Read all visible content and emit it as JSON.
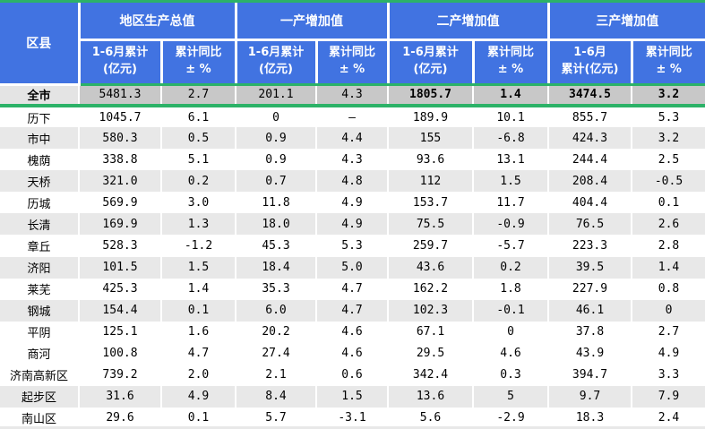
{
  "chart_data": {
    "type": "table",
    "corner_header": "区县",
    "groups": [
      {
        "label": "地区生产总值",
        "col_value": {
          "l1": "1-6月累计",
          "l2": "(亿元)"
        },
        "col_yoy": {
          "l1": "累计同比",
          "l2": "± %"
        }
      },
      {
        "label": "一产增加值",
        "col_value": {
          "l1": "1-6月累计",
          "l2": "(亿元)"
        },
        "col_yoy": {
          "l1": "累计同比",
          "l2": "± %"
        }
      },
      {
        "label": "二产增加值",
        "col_value": {
          "l1": "1-6月累计",
          "l2": "(亿元)"
        },
        "col_yoy": {
          "l1": "累计同比",
          "l2": "± %"
        }
      },
      {
        "label": "三产增加值",
        "col_value": {
          "l1": "1-6月",
          "l2": "累计(亿元)"
        },
        "col_yoy": {
          "l1": "累计同比",
          "l2": "± %"
        }
      }
    ],
    "total_row": {
      "region": "全市",
      "values": [
        "5481.3",
        "2.7",
        "201.1",
        "4.3",
        "1805.7",
        "1.4",
        "3474.5",
        "3.2"
      ]
    },
    "rows": [
      {
        "region": "历下",
        "values": [
          "1045.7",
          "6.1",
          "0",
          "–",
          "189.9",
          "10.1",
          "855.7",
          "5.3"
        ],
        "shaded": false
      },
      {
        "region": "市中",
        "values": [
          "580.3",
          "0.5",
          "0.9",
          "4.4",
          "155",
          "-6.8",
          "424.3",
          "3.2"
        ],
        "shaded": true
      },
      {
        "region": "槐荫",
        "values": [
          "338.8",
          "5.1",
          "0.9",
          "4.3",
          "93.6",
          "13.1",
          "244.4",
          "2.5"
        ],
        "shaded": false
      },
      {
        "region": "天桥",
        "values": [
          "321.0",
          "0.2",
          "0.7",
          "4.8",
          "112",
          "1.5",
          "208.4",
          "-0.5"
        ],
        "shaded": true
      },
      {
        "region": "历城",
        "values": [
          "569.9",
          "3.0",
          "11.8",
          "4.9",
          "153.7",
          "11.7",
          "404.4",
          "0.1"
        ],
        "shaded": false
      },
      {
        "region": "长清",
        "values": [
          "169.9",
          "1.3",
          "18.0",
          "4.9",
          "75.5",
          "-0.9",
          "76.5",
          "2.6"
        ],
        "shaded": true
      },
      {
        "region": "章丘",
        "values": [
          "528.3",
          "-1.2",
          "45.3",
          "5.3",
          "259.7",
          "-5.7",
          "223.3",
          "2.8"
        ],
        "shaded": false
      },
      {
        "region": "济阳",
        "values": [
          "101.5",
          "1.5",
          "18.4",
          "5.0",
          "43.6",
          "0.2",
          "39.5",
          "1.4"
        ],
        "shaded": true
      },
      {
        "region": "莱芜",
        "values": [
          "425.3",
          "1.4",
          "35.3",
          "4.7",
          "162.2",
          "1.8",
          "227.9",
          "0.8"
        ],
        "shaded": false
      },
      {
        "region": "钢城",
        "values": [
          "154.4",
          "0.1",
          "6.0",
          "4.7",
          "102.3",
          "-0.1",
          "46.1",
          "0"
        ],
        "shaded": true
      },
      {
        "region": "平阴",
        "values": [
          "125.1",
          "1.6",
          "20.2",
          "4.6",
          "67.1",
          "0",
          "37.8",
          "2.7"
        ],
        "shaded": false
      },
      {
        "region": "商河",
        "values": [
          "100.8",
          "4.7",
          "27.4",
          "4.6",
          "29.5",
          "4.6",
          "43.9",
          "4.9"
        ],
        "shaded": false
      },
      {
        "region": "济南高新区",
        "values": [
          "739.2",
          "2.0",
          "2.1",
          "0.6",
          "342.4",
          "0.3",
          "394.7",
          "3.3"
        ],
        "shaded": false
      },
      {
        "region": "起步区",
        "values": [
          "31.6",
          "4.9",
          "8.4",
          "1.5",
          "13.6",
          "5",
          "9.7",
          "7.9"
        ],
        "shaded": true
      },
      {
        "region": "南山区",
        "values": [
          "29.6",
          "0.1",
          "5.7",
          "-3.1",
          "5.6",
          "-2.9",
          "18.3",
          "2.4"
        ],
        "shaded": false
      }
    ]
  },
  "colors": {
    "header_blue": "#4173E1",
    "accent_green": "#2CB268",
    "total_row_gray": "#C8C8C8",
    "stripe_gray": "#E8E8E8"
  }
}
